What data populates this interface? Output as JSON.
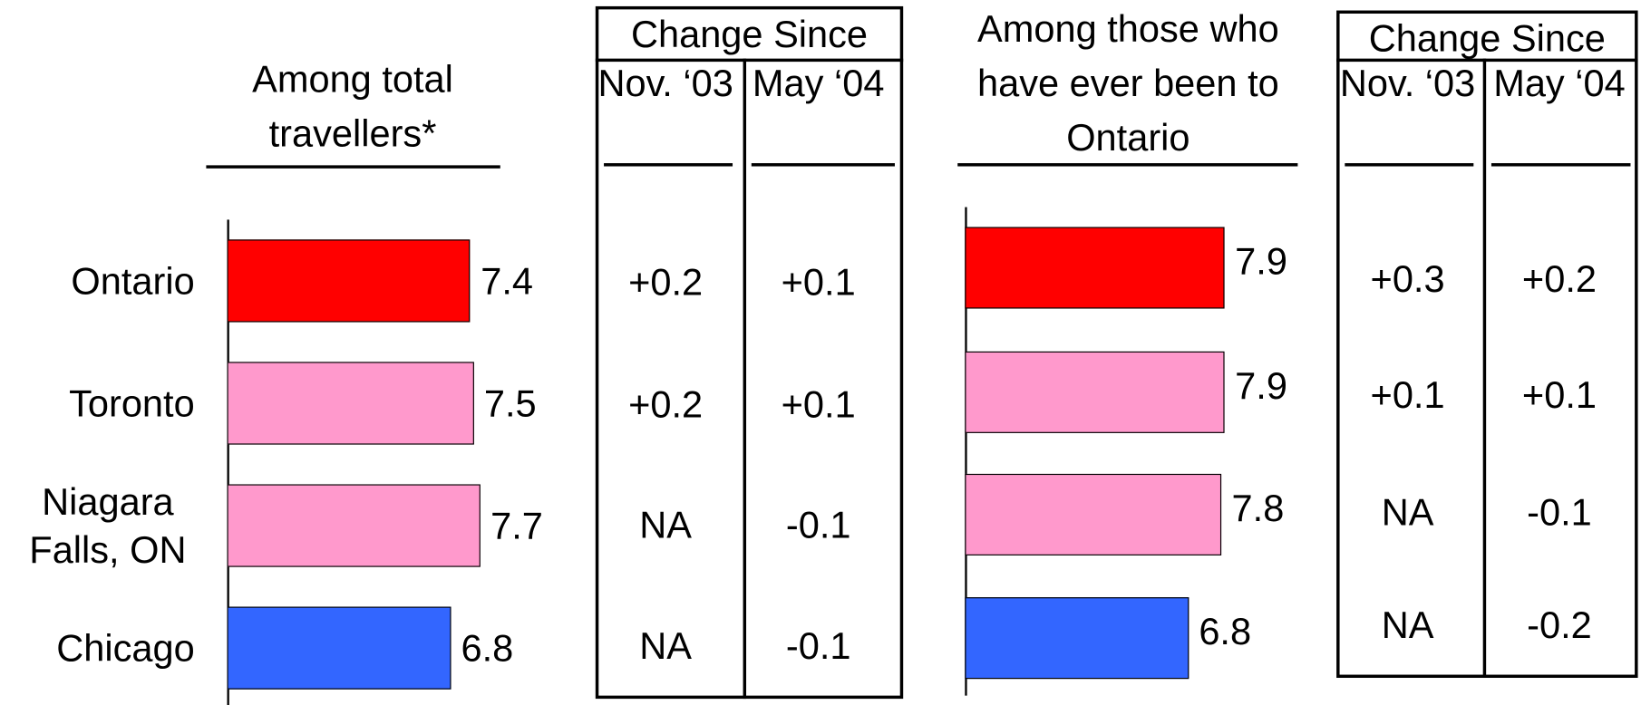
{
  "chart_data": [
    {
      "type": "bar",
      "orientation": "horizontal",
      "title": "Among total travellers*",
      "categories": [
        "Ontario",
        "Toronto",
        "Niagara Falls, ON",
        "Chicago"
      ],
      "values": [
        7.4,
        7.5,
        7.7,
        6.8
      ],
      "colors": [
        "#ff0000",
        "#ff99cc",
        "#ff99cc",
        "#3366ff"
      ],
      "xlim": [
        0,
        10
      ]
    },
    {
      "type": "bar",
      "orientation": "horizontal",
      "title": "Among those who have ever been to Ontario",
      "values": [
        7.9,
        7.9,
        7.8,
        6.8
      ],
      "colors": [
        "#ff0000",
        "#ff99cc",
        "#ff99cc",
        "#3366ff"
      ],
      "xlim": [
        0,
        10
      ]
    }
  ],
  "tables": [
    {
      "header": "Change Since",
      "columns": [
        "Nov. ‘03",
        "May ‘04"
      ],
      "rows": [
        [
          "+0.2",
          "+0.1"
        ],
        [
          "+0.2",
          "+0.1"
        ],
        [
          "NA",
          "-0.1"
        ],
        [
          "NA",
          "-0.1"
        ]
      ]
    },
    {
      "header": "Change Since",
      "columns": [
        "Nov. ‘03",
        "May ‘04"
      ],
      "rows": [
        [
          "+0.3",
          "+0.2"
        ],
        [
          "+0.1",
          "+0.1"
        ],
        [
          "NA",
          "-0.1"
        ],
        [
          "NA",
          "-0.2"
        ]
      ]
    }
  ]
}
